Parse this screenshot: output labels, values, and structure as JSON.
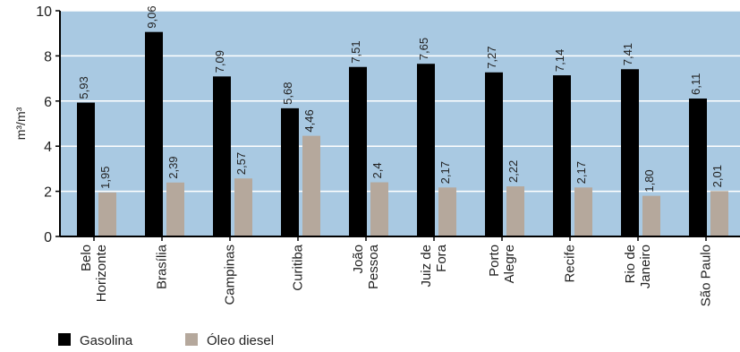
{
  "chart_data": {
    "type": "bar",
    "title": "",
    "xlabel": "",
    "ylabel": "m³/m³",
    "ylim": [
      0,
      10
    ],
    "yticks": [
      0,
      2,
      4,
      6,
      8,
      10
    ],
    "grid": true,
    "categories": [
      [
        "Belo",
        "Horizonte"
      ],
      [
        "Brasília"
      ],
      [
        "Campinas"
      ],
      [
        "Curitiba"
      ],
      [
        "João",
        "Pessoa"
      ],
      [
        "Juiz de",
        "Fora"
      ],
      [
        "Porto",
        "Alegre"
      ],
      [
        "Recife"
      ],
      [
        "Rio de",
        "Janeiro"
      ],
      [
        "São Paulo"
      ]
    ],
    "series": [
      {
        "name": "Gasolina",
        "color": "#000000",
        "values": [
          5.93,
          9.06,
          7.09,
          5.68,
          7.51,
          7.65,
          7.27,
          7.14,
          7.41,
          6.11
        ],
        "labels": [
          "5,93",
          "9,06",
          "7,09",
          "5,68",
          "7,51",
          "7,65",
          "7,27",
          "7,14",
          "7,41",
          "6,11"
        ]
      },
      {
        "name": "Óleo diesel",
        "color": "#b5a89c",
        "values": [
          1.95,
          2.39,
          2.57,
          4.46,
          2.4,
          2.17,
          2.22,
          2.17,
          1.8,
          2.01
        ],
        "labels": [
          "1,95",
          "2,39",
          "2,57",
          "4,46",
          "2,4",
          "2,17",
          "2,22",
          "2,17",
          "1,80",
          "2,01"
        ]
      }
    ],
    "legend_position": "bottom-left",
    "colors": {
      "plot_background": "#a9c9e2",
      "gridline": "#ffffff"
    }
  }
}
